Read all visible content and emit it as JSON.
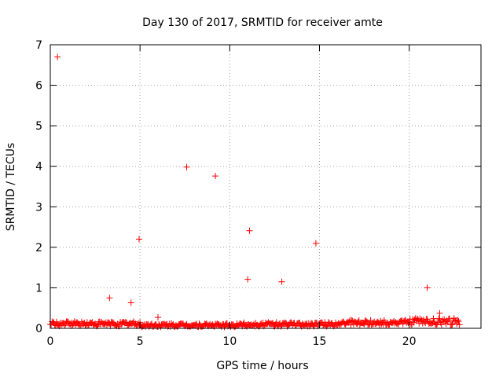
{
  "chart_data": {
    "type": "scatter",
    "title": "Day 130 of 2017, SRMTID for receiver amte",
    "xlabel": "GPS time / hours",
    "ylabel": "SRMTID / TECUs",
    "xlim": [
      0,
      24
    ],
    "ylim": [
      0,
      7
    ],
    "xticks": [
      0,
      5,
      10,
      15,
      20
    ],
    "yticks": [
      0,
      1,
      2,
      3,
      4,
      5,
      6,
      7
    ],
    "grid": true,
    "marker": "+",
    "color": "#ff0000",
    "series": [
      {
        "name": "SRMTID",
        "outliers": [
          {
            "x": 0.4,
            "y": 6.7
          },
          {
            "x": 3.3,
            "y": 0.75
          },
          {
            "x": 4.5,
            "y": 0.63
          },
          {
            "x": 4.95,
            "y": 2.2
          },
          {
            "x": 6.0,
            "y": 0.27
          },
          {
            "x": 7.6,
            "y": 3.98
          },
          {
            "x": 9.2,
            "y": 3.76
          },
          {
            "x": 11.0,
            "y": 1.21
          },
          {
            "x": 11.1,
            "y": 2.41
          },
          {
            "x": 12.9,
            "y": 1.15
          },
          {
            "x": 14.8,
            "y": 2.1
          },
          {
            "x": 21.0,
            "y": 1.0
          },
          {
            "x": 21.7,
            "y": 0.37
          }
        ],
        "baseline": {
          "x_start": 0.0,
          "x_end": 22.8,
          "x_step": 0.05,
          "segments": [
            {
              "from": 0,
              "to": 5,
              "low": 0.05,
              "high": 0.17
            },
            {
              "from": 5,
              "to": 10.6,
              "low": 0.03,
              "high": 0.12
            },
            {
              "from": 10.6,
              "to": 16,
              "low": 0.04,
              "high": 0.15
            },
            {
              "from": 16,
              "to": 20,
              "low": 0.08,
              "high": 0.2
            },
            {
              "from": 20,
              "to": 22.8,
              "low": 0.08,
              "high": 0.25
            }
          ]
        }
      }
    ]
  }
}
